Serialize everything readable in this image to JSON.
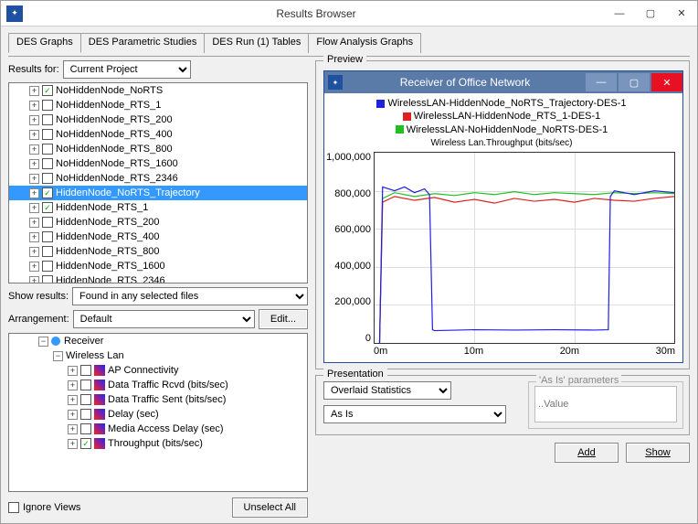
{
  "window": {
    "title": "Results Browser",
    "controls": {
      "min": "—",
      "max": "▢",
      "close": "✕"
    }
  },
  "tabs": [
    "DES Graphs",
    "DES Parametric Studies",
    "DES Run (1) Tables",
    "Flow Analysis Graphs"
  ],
  "active_tab": 0,
  "results_for": {
    "label": "Results for:",
    "value": "Current Project"
  },
  "scenario_tree": [
    {
      "label": "NoHiddenNode_NoRTS",
      "checked": true
    },
    {
      "label": "NoHiddenNode_RTS_1",
      "checked": false
    },
    {
      "label": "NoHiddenNode_RTS_200",
      "checked": false
    },
    {
      "label": "NoHiddenNode_RTS_400",
      "checked": false
    },
    {
      "label": "NoHiddenNode_RTS_800",
      "checked": false
    },
    {
      "label": "NoHiddenNode_RTS_1600",
      "checked": false
    },
    {
      "label": "NoHiddenNode_RTS_2346",
      "checked": false
    },
    {
      "label": "HiddenNode_NoRTS_Trajectory",
      "checked": true,
      "selected": true
    },
    {
      "label": "HiddenNode_RTS_1",
      "checked": true
    },
    {
      "label": "HiddenNode_RTS_200",
      "checked": false
    },
    {
      "label": "HiddenNode_RTS_400",
      "checked": false
    },
    {
      "label": "HiddenNode_RTS_800",
      "checked": false
    },
    {
      "label": "HiddenNode_RTS_1600",
      "checked": false
    },
    {
      "label": "HiddenNode_RTS_2346",
      "checked": false
    }
  ],
  "show_results": {
    "label": "Show results:",
    "value": "Found in any selected files"
  },
  "arrangement": {
    "label": "Arrangement:",
    "value": "Default",
    "edit": "Edit..."
  },
  "stat_tree": {
    "root": {
      "label": "Receiver"
    },
    "group": {
      "label": "Wireless Lan"
    },
    "items": [
      {
        "label": "AP Connectivity",
        "checked": false
      },
      {
        "label": "Data Traffic Rcvd (bits/sec)",
        "checked": false
      },
      {
        "label": "Data Traffic Sent (bits/sec)",
        "checked": false
      },
      {
        "label": "Delay (sec)",
        "checked": false
      },
      {
        "label": "Media Access Delay (sec)",
        "checked": false
      },
      {
        "label": "Throughput (bits/sec)",
        "checked": true
      }
    ]
  },
  "ignore_views": {
    "label": "Ignore Views",
    "checked": false
  },
  "unselect_all": "Unselect All",
  "preview": {
    "group_label": "Preview",
    "title": "Receiver of Office Network",
    "legend": [
      {
        "color": "#2020e0",
        "label": "WirelessLAN-HiddenNode_NoRTS_Trajectory-DES-1"
      },
      {
        "color": "#e02020",
        "label": "WirelessLAN-HiddenNode_RTS_1-DES-1"
      },
      {
        "color": "#20c020",
        "label": "WirelessLAN-NoHiddenNode_NoRTS-DES-1"
      }
    ],
    "chart_title": "Wireless Lan.Throughput (bits/sec)",
    "y_ticks": [
      "1,000,000",
      "800,000",
      "600,000",
      "400,000",
      "200,000",
      "0"
    ],
    "x_ticks": [
      "0m",
      "10m",
      "20m",
      "30m"
    ],
    "ylim": [
      0,
      1000000
    ],
    "xlim": [
      0,
      30
    ],
    "grid_color": "#dddddd",
    "background": "#ffffff",
    "series": {
      "green": [
        [
          0.5,
          0
        ],
        [
          0.8,
          760000
        ],
        [
          2,
          790000
        ],
        [
          4,
          770000
        ],
        [
          6,
          785000
        ],
        [
          8,
          775000
        ],
        [
          10,
          790000
        ],
        [
          12,
          780000
        ],
        [
          14,
          795000
        ],
        [
          16,
          780000
        ],
        [
          18,
          790000
        ],
        [
          20,
          785000
        ],
        [
          22,
          780000
        ],
        [
          24,
          790000
        ],
        [
          26,
          785000
        ],
        [
          28,
          790000
        ],
        [
          30,
          785000
        ]
      ],
      "red": [
        [
          0.5,
          0
        ],
        [
          0.8,
          740000
        ],
        [
          2,
          770000
        ],
        [
          4,
          750000
        ],
        [
          6,
          765000
        ],
        [
          8,
          740000
        ],
        [
          10,
          755000
        ],
        [
          12,
          735000
        ],
        [
          14,
          760000
        ],
        [
          16,
          745000
        ],
        [
          18,
          755000
        ],
        [
          20,
          740000
        ],
        [
          22,
          760000
        ],
        [
          24,
          750000
        ],
        [
          26,
          745000
        ],
        [
          28,
          760000
        ],
        [
          30,
          770000
        ]
      ],
      "blue": [
        [
          0.5,
          0
        ],
        [
          0.8,
          820000
        ],
        [
          2,
          800000
        ],
        [
          3,
          820000
        ],
        [
          4,
          790000
        ],
        [
          5,
          810000
        ],
        [
          5.5,
          780000
        ],
        [
          5.8,
          70000
        ],
        [
          6,
          65000
        ],
        [
          10,
          70000
        ],
        [
          14,
          68000
        ],
        [
          18,
          70000
        ],
        [
          22,
          68000
        ],
        [
          23.4,
          70000
        ],
        [
          23.6,
          770000
        ],
        [
          24,
          800000
        ],
        [
          26,
          780000
        ],
        [
          28,
          800000
        ],
        [
          30,
          790000
        ]
      ]
    }
  },
  "presentation": {
    "group_label": "Presentation",
    "stat_mode": "Overlaid Statistics",
    "asis": "As Is",
    "param_group": "'As Is' parameters",
    "param_placeholder": "..Value"
  },
  "add": "Add",
  "show": "Show"
}
